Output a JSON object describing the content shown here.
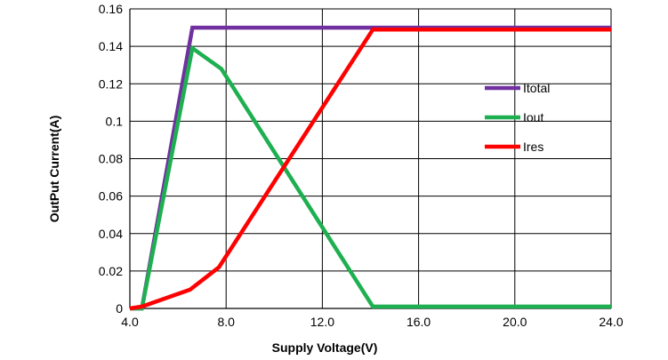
{
  "chart_data": {
    "type": "line",
    "title": "",
    "xlabel": "Supply Voltage(V)",
    "ylabel": "OutPut Current(A)",
    "xlim": [
      4.0,
      24.0
    ],
    "ylim": [
      0,
      0.16
    ],
    "grid": true,
    "legend_position": "right",
    "x_ticks": [
      4.0,
      8.0,
      12.0,
      16.0,
      20.0,
      24.0
    ],
    "x_tick_labels": [
      "4.0",
      "8.0",
      "12.0",
      "16.0",
      "20.0",
      "24.0"
    ],
    "x_grid_lines": [
      4.0,
      8.0,
      12.0,
      16.0,
      20.0,
      24.0
    ],
    "y_ticks": [
      0,
      0.02,
      0.04,
      0.06,
      0.08,
      0.1,
      0.12,
      0.14,
      0.16
    ],
    "y_tick_labels": [
      "0",
      "0.02",
      "0.04",
      "0.06",
      "0.08",
      "0.1",
      "0.12",
      "0.14",
      "0.16"
    ],
    "series": [
      {
        "name": "Itotal",
        "color": "#7030a0",
        "points": [
          [
            4.0,
            0
          ],
          [
            4.5,
            0
          ],
          [
            6.6,
            0.15
          ],
          [
            24.0,
            0.15
          ]
        ]
      },
      {
        "name": "Iout",
        "color": "#1eb050",
        "points": [
          [
            4.0,
            0
          ],
          [
            4.5,
            0
          ],
          [
            6.6,
            0.139
          ],
          [
            7.8,
            0.128
          ],
          [
            14.1,
            0.001
          ],
          [
            24.0,
            0.001
          ]
        ]
      },
      {
        "name": "Ires",
        "color": "#ff0000",
        "points": [
          [
            4.0,
            0
          ],
          [
            4.5,
            0.001
          ],
          [
            6.5,
            0.01
          ],
          [
            7.7,
            0.022
          ],
          [
            14.1,
            0.149
          ],
          [
            24.0,
            0.149
          ]
        ]
      }
    ]
  }
}
